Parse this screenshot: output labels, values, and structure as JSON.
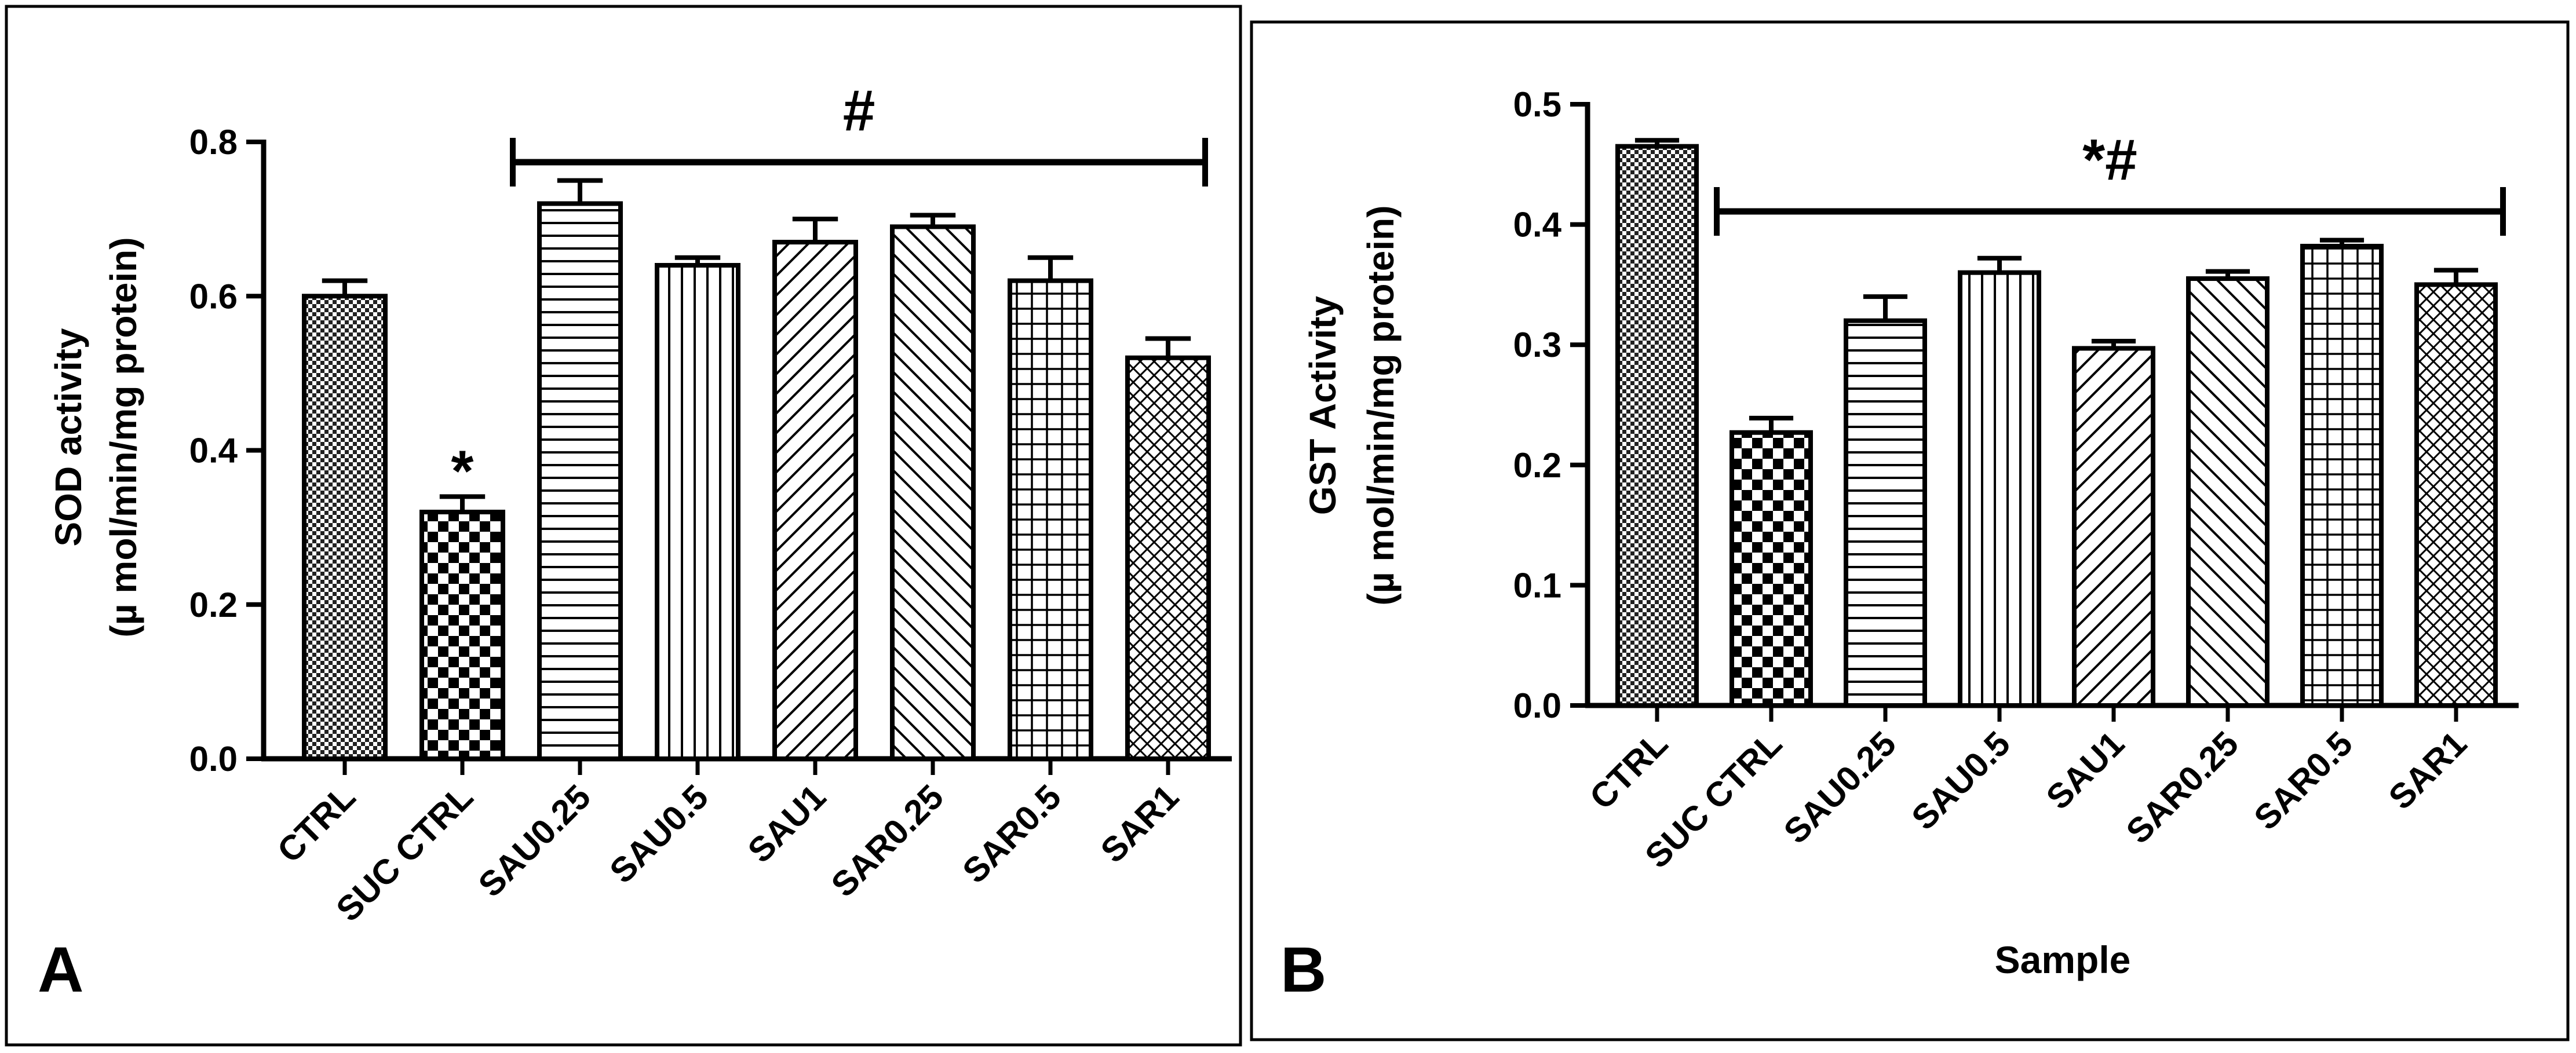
{
  "chart_data": [
    {
      "panel_label": "A",
      "type": "bar",
      "categories": [
        "CTRL",
        "SUC CTRL",
        "SAU0.25",
        "SAU0.5",
        "SAU1",
        "SAR0.25",
        "SAR0.5",
        "SAR1"
      ],
      "values": [
        0.6,
        0.32,
        0.72,
        0.64,
        0.67,
        0.69,
        0.62,
        0.52
      ],
      "errors": [
        0.02,
        0.02,
        0.03,
        0.01,
        0.03,
        0.015,
        0.03,
        0.025
      ],
      "patterns": [
        "dense-check",
        "checker",
        "hlines",
        "vlines",
        "diag-up",
        "diag-down",
        "grid",
        "crosshatch"
      ],
      "ylabel_line1": "SOD activity",
      "ylabel_line2": "(µ mol/min/mg protein)",
      "xlabel": "",
      "ylim": [
        0,
        0.8
      ],
      "yticks": [
        "0.0",
        "0.2",
        "0.4",
        "0.6",
        "0.8"
      ],
      "annotations": [
        {
          "text": "*",
          "category": "SUC CTRL"
        },
        {
          "text": "#",
          "bracket_from": "SAU0.25",
          "bracket_to": "SAR1"
        }
      ]
    },
    {
      "panel_label": "B",
      "type": "bar",
      "categories": [
        "CTRL",
        "SUC CTRL",
        "SAU0.25",
        "SAU0.5",
        "SAU1",
        "SAR0.25",
        "SAR0.5",
        "SAR1"
      ],
      "values": [
        0.465,
        0.227,
        0.32,
        0.36,
        0.297,
        0.355,
        0.382,
        0.35
      ],
      "errors": [
        0.005,
        0.012,
        0.02,
        0.012,
        0.006,
        0.006,
        0.005,
        0.012
      ],
      "patterns": [
        "dense-check",
        "checker",
        "hlines",
        "vlines",
        "diag-up",
        "diag-down",
        "grid",
        "crosshatch"
      ],
      "ylabel_line1": "GST Activity",
      "ylabel_line2": "(µ mol/min/mg protein)",
      "xlabel": "Sample",
      "ylim": [
        0,
        0.5
      ],
      "yticks": [
        "0.0",
        "0.1",
        "0.2",
        "0.3",
        "0.4",
        "0.5"
      ],
      "annotations": [
        {
          "text": "*#",
          "bracket_from": "SUC CTRL",
          "bracket_to": "SAR1"
        }
      ]
    }
  ]
}
